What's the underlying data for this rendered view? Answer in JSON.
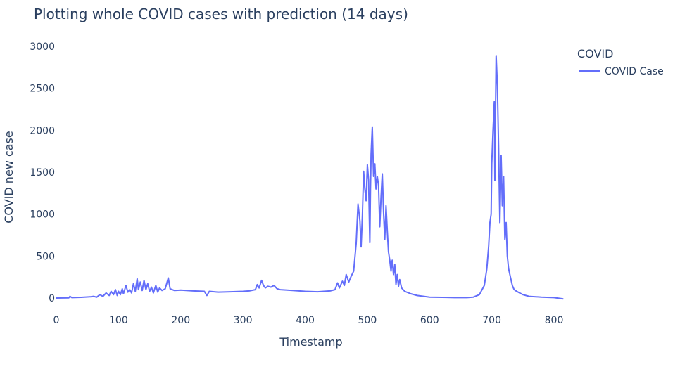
{
  "chart_data": {
    "type": "line",
    "title": "Plotting whole COVID cases with prediction (14 days)",
    "xlabel": "Timestamp",
    "ylabel": "COVID new case",
    "xlim": [
      0,
      820
    ],
    "ylim": [
      -50,
      3000
    ],
    "x_ticks": [
      0,
      100,
      200,
      300,
      400,
      500,
      600,
      700,
      800
    ],
    "y_ticks": [
      0,
      500,
      1000,
      1500,
      2000,
      2500,
      3000
    ],
    "grid": false,
    "legend": {
      "title": "COVID",
      "position": "top-right"
    },
    "series": [
      {
        "name": "COVID Case",
        "color": "#636efa",
        "points": [
          [
            0,
            0
          ],
          [
            20,
            2
          ],
          [
            22,
            20
          ],
          [
            25,
            5
          ],
          [
            40,
            8
          ],
          [
            55,
            15
          ],
          [
            60,
            20
          ],
          [
            65,
            10
          ],
          [
            70,
            40
          ],
          [
            75,
            20
          ],
          [
            80,
            60
          ],
          [
            85,
            30
          ],
          [
            88,
            80
          ],
          [
            92,
            40
          ],
          [
            95,
            100
          ],
          [
            98,
            30
          ],
          [
            100,
            80
          ],
          [
            103,
            40
          ],
          [
            106,
            110
          ],
          [
            108,
            50
          ],
          [
            112,
            150
          ],
          [
            115,
            70
          ],
          [
            118,
            100
          ],
          [
            121,
            60
          ],
          [
            124,
            170
          ],
          [
            127,
            80
          ],
          [
            130,
            230
          ],
          [
            132,
            100
          ],
          [
            135,
            190
          ],
          [
            138,
            90
          ],
          [
            141,
            210
          ],
          [
            144,
            100
          ],
          [
            147,
            170
          ],
          [
            150,
            80
          ],
          [
            153,
            130
          ],
          [
            156,
            60
          ],
          [
            160,
            150
          ],
          [
            163,
            70
          ],
          [
            166,
            120
          ],
          [
            170,
            90
          ],
          [
            175,
            110
          ],
          [
            180,
            240
          ],
          [
            183,
            110
          ],
          [
            190,
            90
          ],
          [
            200,
            95
          ],
          [
            220,
            85
          ],
          [
            238,
            80
          ],
          [
            242,
            30
          ],
          [
            246,
            80
          ],
          [
            260,
            70
          ],
          [
            280,
            75
          ],
          [
            300,
            80
          ],
          [
            310,
            85
          ],
          [
            320,
            100
          ],
          [
            323,
            160
          ],
          [
            326,
            120
          ],
          [
            330,
            210
          ],
          [
            333,
            150
          ],
          [
            336,
            120
          ],
          [
            340,
            140
          ],
          [
            345,
            130
          ],
          [
            350,
            150
          ],
          [
            355,
            110
          ],
          [
            360,
            100
          ],
          [
            380,
            90
          ],
          [
            400,
            80
          ],
          [
            420,
            75
          ],
          [
            430,
            80
          ],
          [
            440,
            85
          ],
          [
            448,
            100
          ],
          [
            452,
            180
          ],
          [
            455,
            120
          ],
          [
            460,
            200
          ],
          [
            463,
            150
          ],
          [
            466,
            280
          ],
          [
            470,
            190
          ],
          [
            474,
            260
          ],
          [
            478,
            320
          ],
          [
            482,
            650
          ],
          [
            485,
            1120
          ],
          [
            488,
            920
          ],
          [
            490,
            610
          ],
          [
            492,
            980
          ],
          [
            494,
            1510
          ],
          [
            496,
            1300
          ],
          [
            498,
            1160
          ],
          [
            500,
            1590
          ],
          [
            502,
            1410
          ],
          [
            504,
            660
          ],
          [
            505,
            1300
          ],
          [
            506,
            1720
          ],
          [
            508,
            2040
          ],
          [
            510,
            1450
          ],
          [
            512,
            1600
          ],
          [
            514,
            1300
          ],
          [
            516,
            1450
          ],
          [
            518,
            1340
          ],
          [
            520,
            850
          ],
          [
            522,
            1200
          ],
          [
            524,
            1480
          ],
          [
            526,
            1020
          ],
          [
            528,
            700
          ],
          [
            530,
            1100
          ],
          [
            532,
            800
          ],
          [
            534,
            550
          ],
          [
            536,
            450
          ],
          [
            538,
            320
          ],
          [
            540,
            450
          ],
          [
            542,
            280
          ],
          [
            544,
            400
          ],
          [
            546,
            160
          ],
          [
            548,
            280
          ],
          [
            550,
            140
          ],
          [
            552,
            220
          ],
          [
            555,
            120
          ],
          [
            560,
            80
          ],
          [
            570,
            50
          ],
          [
            580,
            30
          ],
          [
            600,
            10
          ],
          [
            620,
            8
          ],
          [
            640,
            5
          ],
          [
            660,
            5
          ],
          [
            670,
            10
          ],
          [
            680,
            40
          ],
          [
            688,
            150
          ],
          [
            692,
            350
          ],
          [
            695,
            620
          ],
          [
            697,
            900
          ],
          [
            699,
            1000
          ],
          [
            700,
            1600
          ],
          [
            702,
            2000
          ],
          [
            704,
            2340
          ],
          [
            705,
            1400
          ],
          [
            707,
            2890
          ],
          [
            709,
            2530
          ],
          [
            711,
            1800
          ],
          [
            713,
            900
          ],
          [
            715,
            1700
          ],
          [
            717,
            1100
          ],
          [
            719,
            1450
          ],
          [
            721,
            700
          ],
          [
            723,
            900
          ],
          [
            725,
            500
          ],
          [
            727,
            350
          ],
          [
            730,
            250
          ],
          [
            733,
            150
          ],
          [
            736,
            100
          ],
          [
            740,
            80
          ],
          [
            750,
            40
          ],
          [
            760,
            20
          ],
          [
            780,
            10
          ],
          [
            800,
            5
          ],
          [
            815,
            -10
          ]
        ]
      }
    ]
  }
}
